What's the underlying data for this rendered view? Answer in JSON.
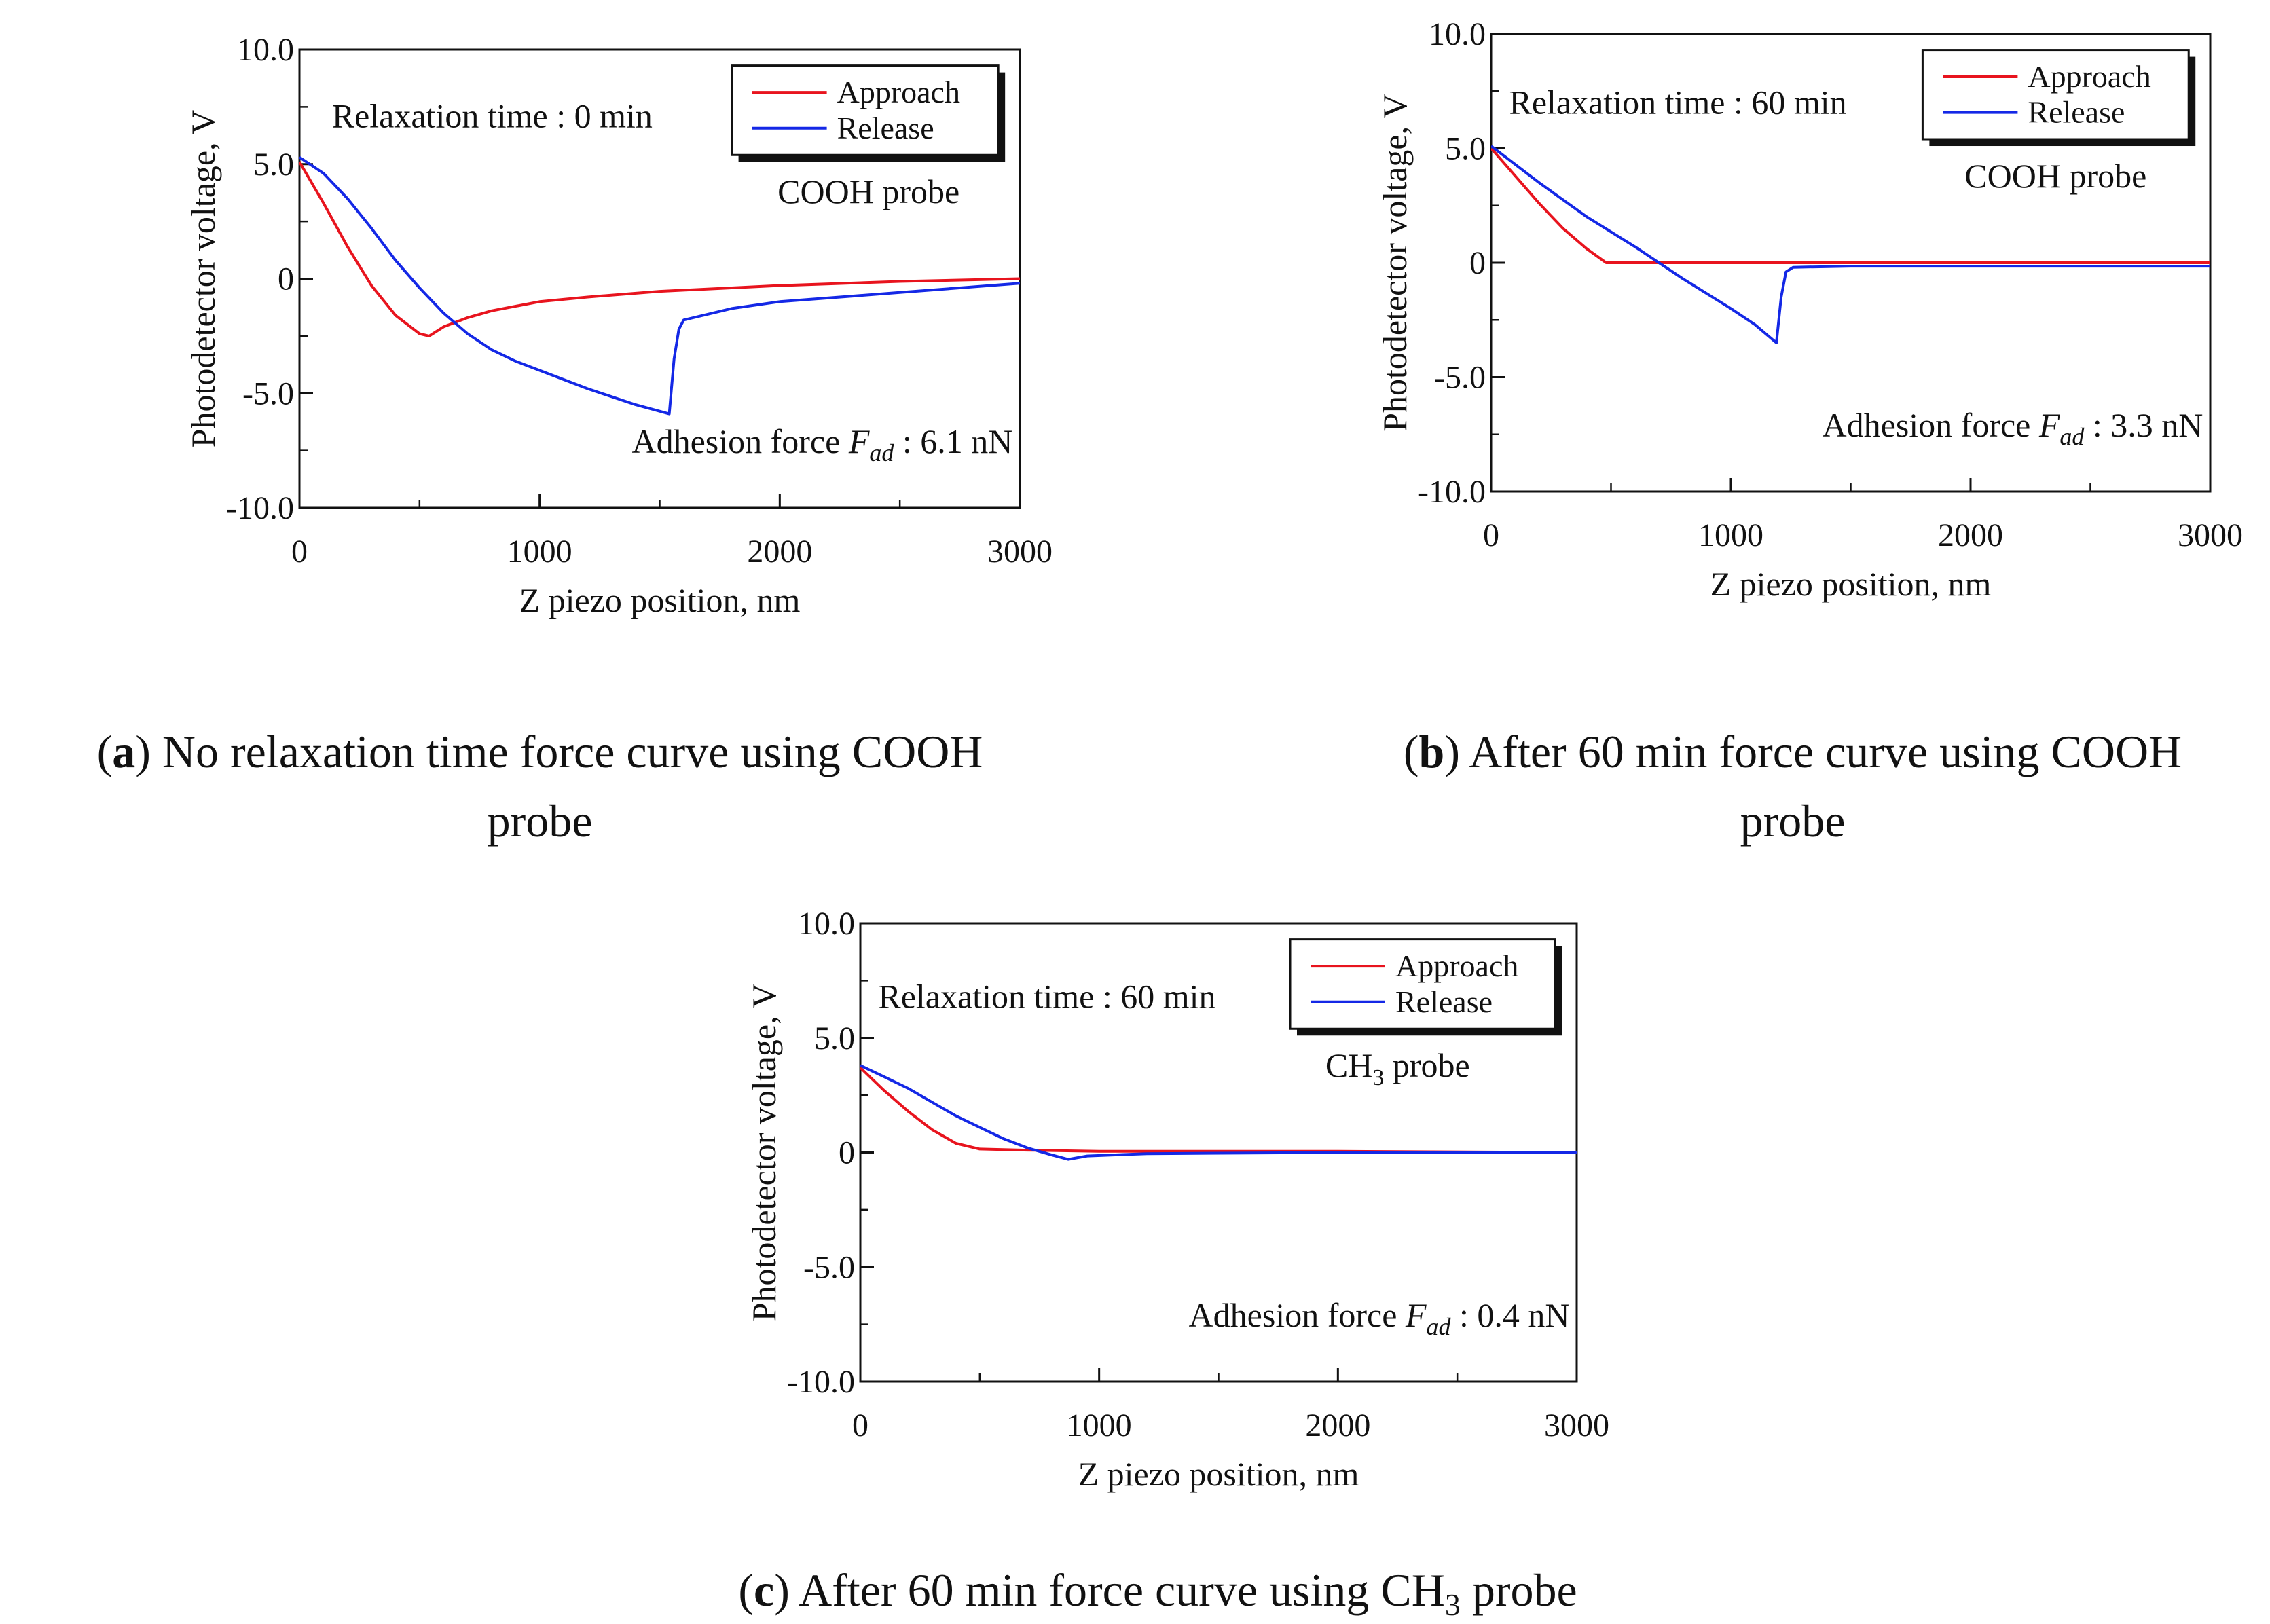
{
  "figure": {
    "captions": [
      {
        "id": "a",
        "letter": "a",
        "line1": "No relaxation time force curve using COOH",
        "line2": "probe"
      },
      {
        "id": "b",
        "letter": "b",
        "line1": "After 60 min force curve using COOH",
        "line2": "probe"
      },
      {
        "id": "c",
        "letter": "c",
        "line1a": "After 60 min force curve using CH",
        "line1sub": "3",
        "line1b": " probe"
      }
    ]
  },
  "colors": {
    "approach": "#e8141e",
    "release": "#1428e6",
    "axis": "#111111"
  },
  "chart_data": [
    {
      "id": "a",
      "type": "line",
      "xlabel": "Z piezo position, nm",
      "ylabel": "Photodetector voltage, V",
      "xlim": [
        0,
        3000
      ],
      "ylim": [
        -10,
        10
      ],
      "xticks": [
        0,
        1000,
        2000,
        3000
      ],
      "xtick_labels": [
        "0",
        "1000",
        "2000",
        "3000"
      ],
      "yticks": [
        10,
        5,
        0,
        -5,
        -10
      ],
      "ytick_labels": [
        "10.0",
        "5.0",
        "0",
        "-5.0",
        "-10.0"
      ],
      "relaxation": "Relaxation time : 0 min",
      "probe": "COOH probe",
      "probe_main": "COOH",
      "probe_sub": "",
      "probe_tail": " probe",
      "adhesion_prefix": "Adhesion force ",
      "adhesion_symbol": "F",
      "adhesion_sub": "ad",
      "adhesion_value": " : 6.1 nN",
      "legend": [
        "Approach",
        "Release"
      ],
      "series": [
        {
          "name": "Approach",
          "x": [
            0,
            100,
            200,
            300,
            400,
            500,
            540,
            600,
            700,
            800,
            1000,
            1200,
            1500,
            2000,
            2500,
            3000
          ],
          "y": [
            5.1,
            3.3,
            1.4,
            -0.3,
            -1.6,
            -2.4,
            -2.5,
            -2.1,
            -1.7,
            -1.4,
            -1.0,
            -0.8,
            -0.55,
            -0.3,
            -0.12,
            0
          ]
        },
        {
          "name": "Release",
          "x": [
            0,
            100,
            200,
            300,
            400,
            500,
            600,
            700,
            800,
            900,
            1000,
            1200,
            1400,
            1540,
            1560,
            1580,
            1600,
            1800,
            2000,
            2500,
            3000
          ],
          "y": [
            5.3,
            4.6,
            3.5,
            2.2,
            0.8,
            -0.4,
            -1.5,
            -2.4,
            -3.1,
            -3.6,
            -4.0,
            -4.8,
            -5.5,
            -5.9,
            -3.5,
            -2.2,
            -1.8,
            -1.3,
            -1.0,
            -0.6,
            -0.2
          ]
        }
      ]
    },
    {
      "id": "b",
      "type": "line",
      "xlabel": "Z piezo position, nm",
      "ylabel": "Photodetector voltage, V",
      "xlim": [
        0,
        3000
      ],
      "ylim": [
        -10,
        10
      ],
      "xticks": [
        0,
        1000,
        2000,
        3000
      ],
      "xtick_labels": [
        "0",
        "1000",
        "2000",
        "3000"
      ],
      "yticks": [
        10,
        5,
        0,
        -5,
        -10
      ],
      "ytick_labels": [
        "10.0",
        "5.0",
        "0",
        "-5.0",
        "-10.0"
      ],
      "relaxation": "Relaxation time : 60 min",
      "probe": "COOH probe",
      "probe_main": "COOH",
      "probe_sub": "",
      "probe_tail": " probe",
      "adhesion_prefix": "Adhesion force ",
      "adhesion_symbol": "F",
      "adhesion_sub": "ad",
      "adhesion_value": " : 3.3 nN",
      "legend": [
        "Approach",
        "Release"
      ],
      "series": [
        {
          "name": "Approach",
          "x": [
            0,
            100,
            200,
            300,
            400,
            480,
            500,
            1000,
            2000,
            3000
          ],
          "y": [
            5.0,
            3.8,
            2.6,
            1.5,
            0.6,
            0.0,
            0.0,
            0.0,
            0.0,
            0.0
          ]
        },
        {
          "name": "Release",
          "x": [
            0,
            200,
            400,
            600,
            800,
            1000,
            1100,
            1190,
            1210,
            1230,
            1260,
            1500,
            2000,
            2500,
            3000
          ],
          "y": [
            5.1,
            3.5,
            2.0,
            0.7,
            -0.7,
            -2.0,
            -2.7,
            -3.5,
            -1.5,
            -0.4,
            -0.2,
            -0.15,
            -0.15,
            -0.15,
            -0.15
          ]
        }
      ]
    },
    {
      "id": "c",
      "type": "line",
      "xlabel": "Z piezo position, nm",
      "ylabel": "Photodetector voltage, V",
      "xlim": [
        0,
        3000
      ],
      "ylim": [
        -10,
        10
      ],
      "xticks": [
        0,
        1000,
        2000,
        3000
      ],
      "xtick_labels": [
        "0",
        "1000",
        "2000",
        "3000"
      ],
      "yticks": [
        10,
        5,
        0,
        -5,
        -10
      ],
      "ytick_labels": [
        "10.0",
        "5.0",
        "0",
        "-5.0",
        "-10.0"
      ],
      "relaxation": "Relaxation time : 60 min",
      "probe": "CH3 probe",
      "probe_main": "CH",
      "probe_sub": "3",
      "probe_tail": " probe",
      "adhesion_prefix": "Adhesion force ",
      "adhesion_symbol": "F",
      "adhesion_sub": "ad",
      "adhesion_value": " : 0.4 nN",
      "legend": [
        "Approach",
        "Release"
      ],
      "series": [
        {
          "name": "Approach",
          "x": [
            0,
            100,
            200,
            300,
            400,
            500,
            700,
            1000,
            2000,
            3000
          ],
          "y": [
            3.7,
            2.7,
            1.8,
            1.0,
            0.4,
            0.15,
            0.1,
            0.05,
            0.05,
            0.0
          ]
        },
        {
          "name": "Release",
          "x": [
            0,
            100,
            200,
            300,
            400,
            500,
            600,
            700,
            800,
            870,
            950,
            1200,
            2000,
            3000
          ],
          "y": [
            3.8,
            3.3,
            2.8,
            2.2,
            1.6,
            1.1,
            0.6,
            0.2,
            -0.1,
            -0.3,
            -0.15,
            -0.05,
            0.0,
            0.0
          ]
        }
      ]
    }
  ]
}
